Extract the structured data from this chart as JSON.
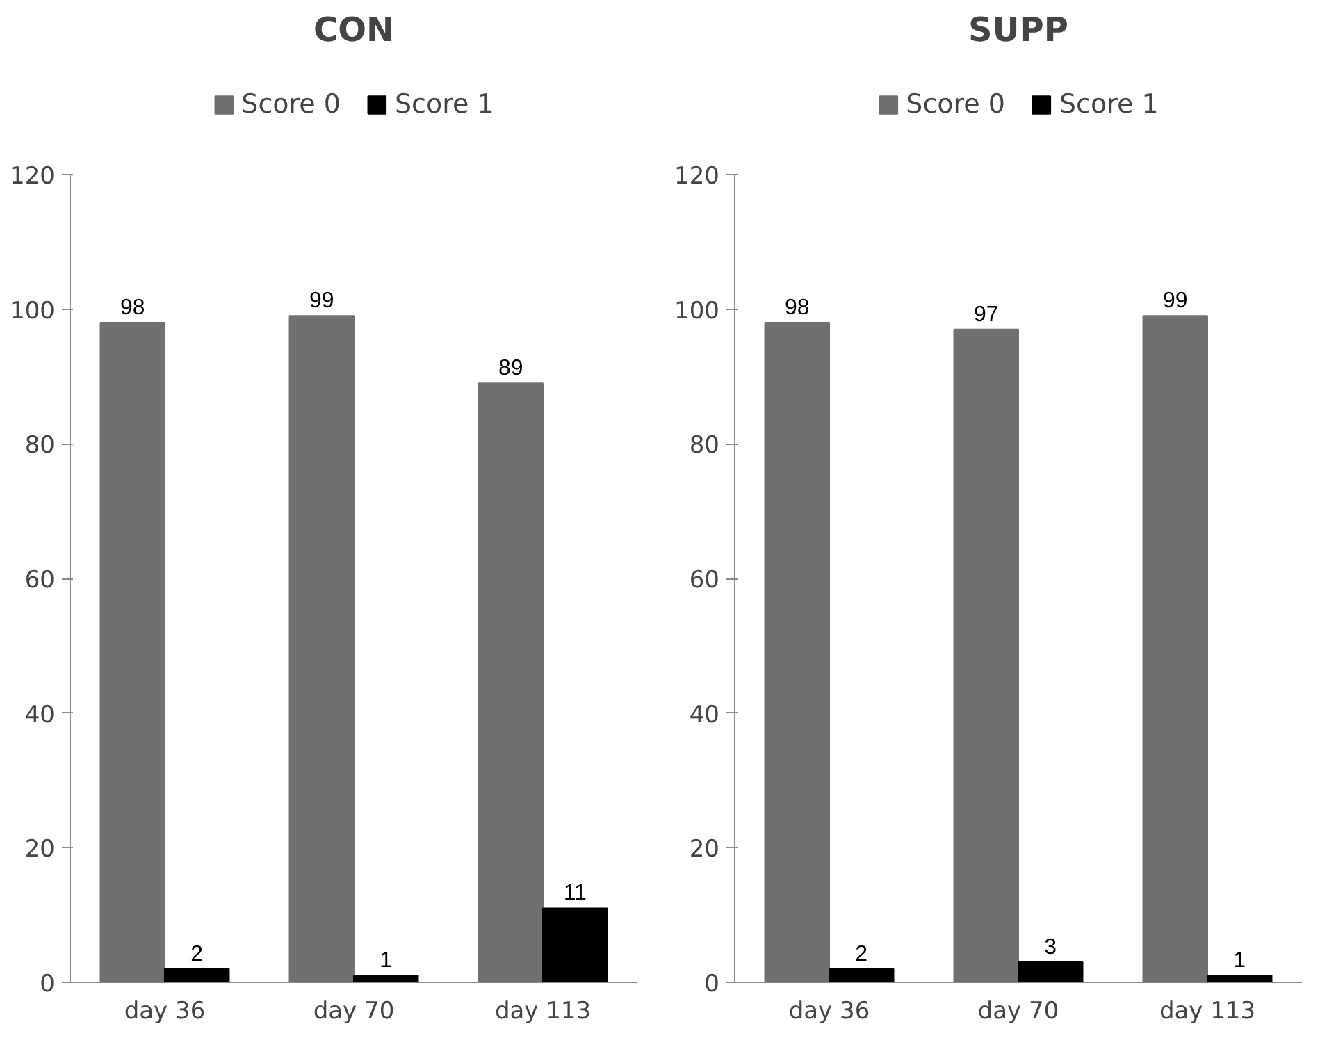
{
  "chart_data": [
    {
      "type": "bar",
      "title": "CON",
      "categories": [
        "day 36",
        "day 70",
        "day 113"
      ],
      "series": [
        {
          "name": "Score 0",
          "color": "#707070",
          "values": [
            98,
            99,
            89
          ]
        },
        {
          "name": "Score 1",
          "color": "#000000",
          "values": [
            2,
            1,
            11
          ]
        }
      ],
      "ylim": [
        0,
        120
      ],
      "yticks": [
        0,
        20,
        40,
        60,
        80,
        100,
        120
      ],
      "grid": false,
      "legend": "top",
      "data_labels": true
    },
    {
      "type": "bar",
      "title": "SUPP",
      "categories": [
        "day 36",
        "day 70",
        "day 113"
      ],
      "series": [
        {
          "name": "Score 0",
          "color": "#707070",
          "values": [
            98,
            97,
            99
          ]
        },
        {
          "name": "Score 1",
          "color": "#000000",
          "values": [
            2,
            3,
            1
          ]
        }
      ],
      "ylim": [
        0,
        120
      ],
      "yticks": [
        0,
        20,
        40,
        60,
        80,
        100,
        120
      ],
      "grid": false,
      "legend": "top",
      "data_labels": true
    }
  ]
}
